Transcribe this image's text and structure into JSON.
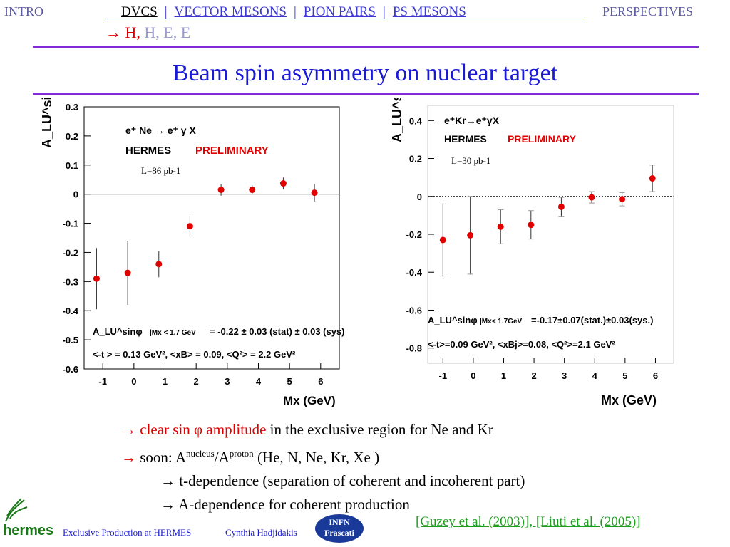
{
  "nav": {
    "left": "INTRO",
    "items": [
      "DVCS",
      "VECTOR MESONS",
      "PION PAIRS",
      "PS MESONS"
    ],
    "separator": "|",
    "right": "PERSPECTIVES",
    "sub_arrow": "→ H,",
    "sub_rest": "H, E, E",
    "colors": {
      "nav": "#3a3ad0",
      "line": "#7f2bd6"
    }
  },
  "title": "Beam spin asymmetry on nuclear target",
  "chart_data": [
    {
      "type": "scatter",
      "reaction": "e⁺ Ne → e⁺ γ X",
      "experiment": "HERMES",
      "preliminary": "PRELIMINARY",
      "luminosity": "L=86 pb-1",
      "ylabel": "A_LU^sinφ",
      "xlabel": "Mx (GeV)",
      "ylim": [
        -0.6,
        0.3
      ],
      "xlim": [
        -1.6,
        6.6
      ],
      "xticks": [
        -1,
        0,
        1,
        2,
        3,
        4,
        5,
        6
      ],
      "yticks": [
        0.3,
        0.2,
        0.1,
        0,
        -0.1,
        -0.2,
        -0.3,
        -0.4,
        -0.5,
        -0.6
      ],
      "zero_line": "solid",
      "x": [
        -1.2,
        -0.2,
        0.8,
        1.8,
        2.8,
        3.8,
        4.8,
        5.8
      ],
      "y": [
        -0.29,
        -0.27,
        -0.24,
        -0.11,
        0.015,
        0.015,
        0.037,
        0.005
      ],
      "err": [
        0.105,
        0.11,
        0.045,
        0.035,
        0.02,
        0.015,
        0.02,
        0.03
      ],
      "result_label": "|Mx < 1.7 GeV",
      "result": "= -0.22 ± 0.03 (stat) ± 0.03 (sys)",
      "kinematics": "<-t > = 0.13 GeV², <xB> = 0.09, <Q²> = 2.2 GeV²"
    },
    {
      "type": "scatter",
      "reaction": "e⁺Kr→e⁺γX",
      "experiment": "HERMES",
      "preliminary": "PRELIMINARY",
      "luminosity": "L=30 pb-1",
      "ylabel": "A_LU^sinφ",
      "xlabel": "Mx (GeV)",
      "ylim": [
        -0.88,
        0.48
      ],
      "xlim": [
        -1.5,
        6.6
      ],
      "xticks": [
        -1,
        0,
        1,
        2,
        3,
        4,
        5,
        6
      ],
      "yticks": [
        0.4,
        0.2,
        0,
        -0.2,
        -0.4,
        -0.6,
        -0.8
      ],
      "zero_line": "dotted",
      "x": [
        -1.0,
        -0.1,
        0.9,
        1.9,
        2.9,
        3.9,
        4.9,
        5.9
      ],
      "y": [
        -0.23,
        -0.205,
        -0.16,
        -0.15,
        -0.055,
        -0.005,
        -0.015,
        0.095
      ],
      "err": [
        0.19,
        0.205,
        0.09,
        0.075,
        0.05,
        0.03,
        0.035,
        0.07
      ],
      "result_label": "|Mx< 1.7GeV",
      "result": "=-0.17±0.07(stat.)±0.03(sys.)",
      "kinematics": "<-t>=0.09 GeV², <xBj>=0.08, <Q²>=2.1 GeV²"
    }
  ],
  "bullets": {
    "b1_arrow": "→",
    "b1_red": "clear sin φ amplitude",
    "b1_rest": "in the exclusive region for Ne and Kr",
    "b2_arrow": "→",
    "b2_a": "soon: A",
    "b2_sup1": "nucleus",
    "b2_b": "/A",
    "b2_sup2": "proton",
    "b2_c": "(He, N, Ne, Kr, Xe )",
    "b3": "→ t-dependence (separation of coherent and incoherent part)",
    "b4": "→ A-dependence for coherent production"
  },
  "references": "[Guzey et al. (2003)], [Liuti et al. (2005)]",
  "footer": {
    "logo": "hermes",
    "talk": "Exclusive Production at HERMES",
    "author": "Cynthia Hadjidakis",
    "infn_top": "INFN",
    "infn_bottom": "Frascati"
  }
}
